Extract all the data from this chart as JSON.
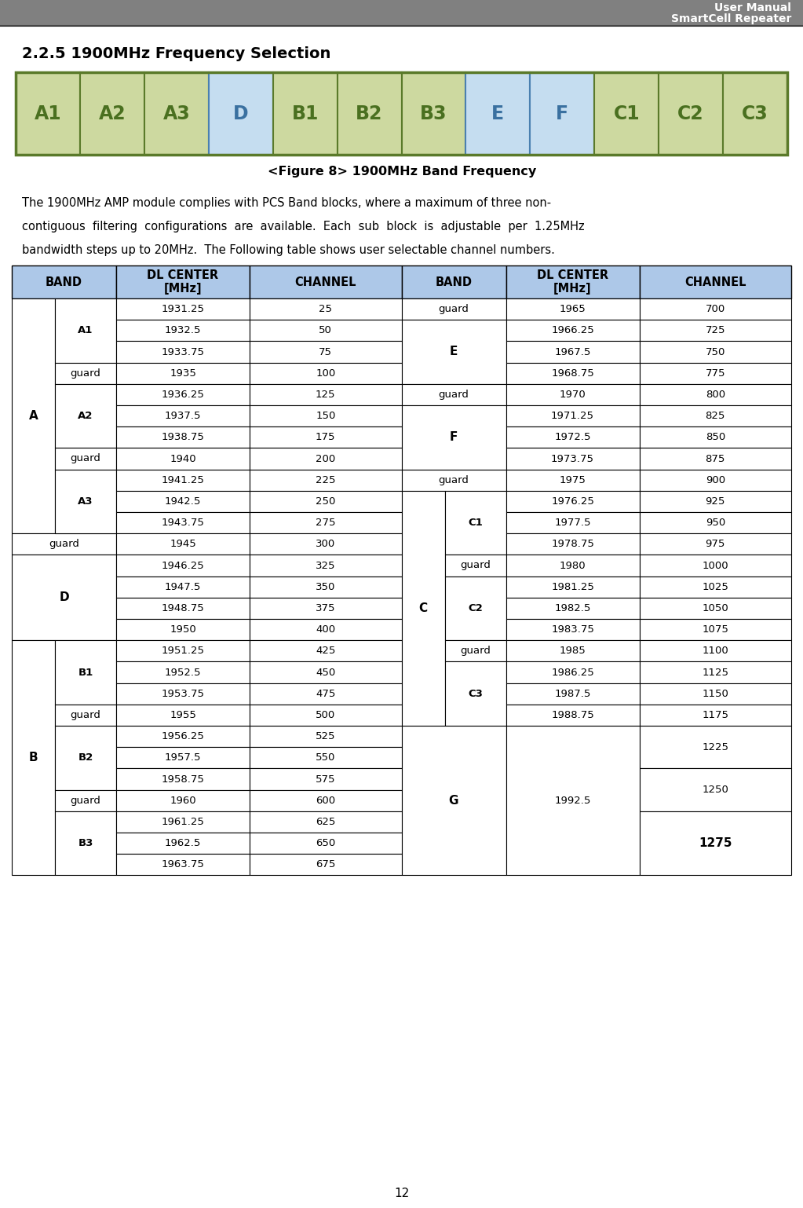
{
  "title_line1": "User Manual",
  "title_line2": "SmartCell Repeater",
  "section_title": "2.2.5 1900MHz Frequency Selection",
  "figure_caption": "<Figure 8> 1900MHz Band Frequency",
  "page_number": "12",
  "band_blocks": [
    "A1",
    "A2",
    "A3",
    "D",
    "B1",
    "B2",
    "B3",
    "E",
    "F",
    "C1",
    "C2",
    "C3"
  ],
  "band_colors_green": "#cdd9a0",
  "band_colors_blue": "#c5ddf0",
  "band_border_green": "#5a7a2a",
  "band_border_blue": "#4a80b0",
  "band_text_green": "#4a7020",
  "band_text_blue": "#3a70a0",
  "header_bg": "#adc8e8",
  "white": "#ffffff",
  "gray_header": "#808080",
  "body_text_line1": "The 1900MHz AMP module complies with PCS Band blocks, where a maximum of three non-",
  "body_text_line2": "contiguous  filtering  configurations  are  available.  Each  sub  block  is  adjustable  per  1.25MHz",
  "body_text_line3": "bandwidth steps up to 20MHz.  The Following table shows user selectable channel numbers."
}
